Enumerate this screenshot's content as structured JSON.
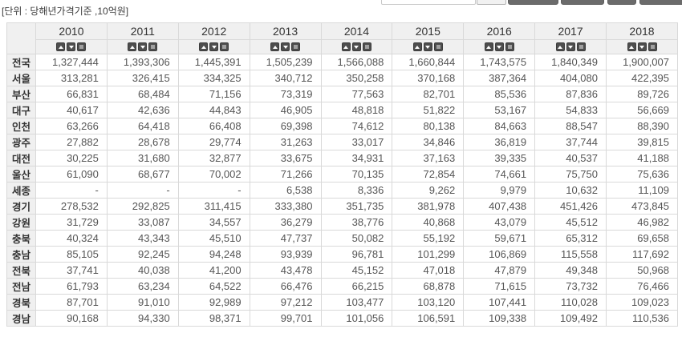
{
  "page": {
    "unit_label": "[단위 : 당해년가격기준 ,10억원]"
  },
  "colors": {
    "header_bg": "#f0f0f0",
    "border": "#d9d9d9",
    "value_text": "#555555",
    "label_text": "#333333",
    "sort_button_bg": "#4e4e4e",
    "toolbar_button_bg": "#6b6b6b"
  },
  "table": {
    "corner_label": "",
    "years": [
      "2010",
      "2011",
      "2012",
      "2013",
      "2014",
      "2015",
      "2016",
      "2017",
      "2018"
    ],
    "sort_buttons": [
      {
        "name": "sort-ascending-button",
        "icon": "triangle-up-icon",
        "css": "tri-up"
      },
      {
        "name": "sort-descending-button",
        "icon": "triangle-down-icon",
        "css": "tri-down"
      },
      {
        "name": "sort-clear-button",
        "icon": "square-icon",
        "css": "sq-icon"
      }
    ],
    "rows": [
      {
        "region": "전국",
        "values": [
          "1,327,444",
          "1,393,306",
          "1,445,391",
          "1,505,239",
          "1,566,088",
          "1,660,844",
          "1,743,575",
          "1,840,349",
          "1,900,007"
        ]
      },
      {
        "region": "서울",
        "values": [
          "313,281",
          "326,415",
          "334,325",
          "340,712",
          "350,258",
          "370,168",
          "387,364",
          "404,080",
          "422,395"
        ]
      },
      {
        "region": "부산",
        "values": [
          "66,831",
          "68,484",
          "71,156",
          "73,319",
          "77,563",
          "82,701",
          "85,536",
          "87,836",
          "89,726"
        ]
      },
      {
        "region": "대구",
        "values": [
          "40,617",
          "42,636",
          "44,843",
          "46,905",
          "48,818",
          "51,822",
          "53,167",
          "54,833",
          "56,669"
        ]
      },
      {
        "region": "인천",
        "values": [
          "63,266",
          "64,418",
          "66,408",
          "69,398",
          "74,612",
          "80,138",
          "84,663",
          "88,547",
          "88,390"
        ]
      },
      {
        "region": "광주",
        "values": [
          "27,882",
          "28,678",
          "29,774",
          "31,263",
          "33,017",
          "34,846",
          "36,819",
          "37,744",
          "39,815"
        ]
      },
      {
        "region": "대전",
        "values": [
          "30,225",
          "31,680",
          "32,877",
          "33,675",
          "34,931",
          "37,163",
          "39,335",
          "40,537",
          "41,188"
        ]
      },
      {
        "region": "울산",
        "values": [
          "61,090",
          "68,677",
          "70,002",
          "71,266",
          "70,135",
          "72,854",
          "74,661",
          "75,750",
          "75,636"
        ]
      },
      {
        "region": "세종",
        "values": [
          "-",
          "-",
          "-",
          "6,538",
          "8,336",
          "9,262",
          "9,979",
          "10,632",
          "11,109"
        ]
      },
      {
        "region": "경기",
        "values": [
          "278,532",
          "292,825",
          "311,415",
          "333,380",
          "351,735",
          "381,978",
          "407,438",
          "451,426",
          "473,845"
        ]
      },
      {
        "region": "강원",
        "values": [
          "31,729",
          "33,087",
          "34,557",
          "36,279",
          "38,776",
          "40,868",
          "43,079",
          "45,512",
          "46,982"
        ]
      },
      {
        "region": "충북",
        "values": [
          "40,324",
          "43,343",
          "45,510",
          "47,737",
          "50,082",
          "55,192",
          "59,671",
          "65,312",
          "69,658"
        ]
      },
      {
        "region": "충남",
        "values": [
          "85,105",
          "92,245",
          "94,248",
          "93,939",
          "96,781",
          "101,299",
          "106,869",
          "115,558",
          "117,692"
        ]
      },
      {
        "region": "전북",
        "values": [
          "37,741",
          "40,038",
          "41,200",
          "43,478",
          "45,152",
          "47,018",
          "47,879",
          "49,348",
          "50,968"
        ]
      },
      {
        "region": "전남",
        "values": [
          "61,793",
          "63,234",
          "64,522",
          "66,476",
          "66,215",
          "68,878",
          "71,615",
          "73,732",
          "76,466"
        ]
      },
      {
        "region": "경북",
        "values": [
          "87,701",
          "91,010",
          "92,989",
          "97,212",
          "103,477",
          "103,120",
          "107,441",
          "110,028",
          "109,023"
        ]
      },
      {
        "region": "경남",
        "values": [
          "90,168",
          "94,330",
          "98,371",
          "99,701",
          "101,056",
          "106,591",
          "109,338",
          "109,492",
          "110,536"
        ]
      }
    ]
  }
}
